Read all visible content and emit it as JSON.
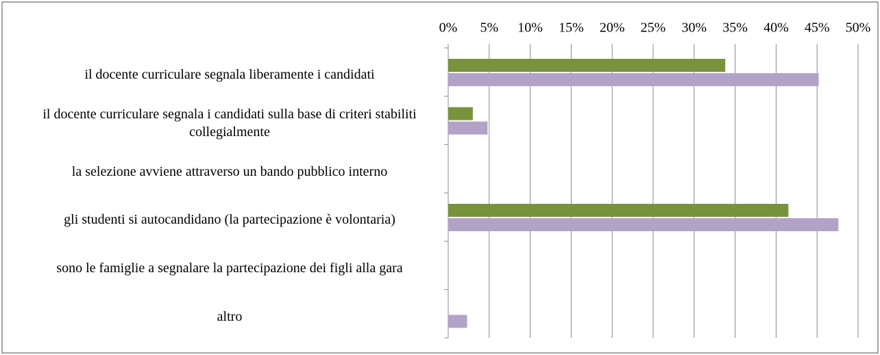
{
  "chart_data": {
    "type": "bar",
    "orientation": "horizontal",
    "categories": [
      "il docente curriculare segnala liberamente i candidati",
      "il docente curriculare segnala i candidati sulla base di criteri stabiliti collegialmente",
      "la selezione avviene attraverso un bando pubblico interno",
      "gli studenti si autocandidano (la partecipazione è volontaria)",
      "sono le famiglie a segnalare la partecipazione dei figli alla gara",
      "altro"
    ],
    "series": [
      {
        "color": "#77933c",
        "values": [
          33.8,
          3.0,
          0,
          41.5,
          0,
          0
        ]
      },
      {
        "color": "#b3a2c7",
        "values": [
          45.2,
          4.8,
          0,
          47.6,
          0,
          2.3
        ]
      }
    ],
    "xlim": [
      0,
      50
    ],
    "xticks": [
      {
        "value": 0,
        "label": "0%"
      },
      {
        "value": 5,
        "label": "5%"
      },
      {
        "value": 10,
        "label": "10%"
      },
      {
        "value": 15,
        "label": "15%"
      },
      {
        "value": 20,
        "label": "20%"
      },
      {
        "value": 25,
        "label": "25%"
      },
      {
        "value": 30,
        "label": "30%"
      },
      {
        "value": 35,
        "label": "35%"
      },
      {
        "value": 40,
        "label": "40%"
      },
      {
        "value": 45,
        "label": "45%"
      },
      {
        "value": 50,
        "label": "50%"
      }
    ],
    "grid": true
  }
}
